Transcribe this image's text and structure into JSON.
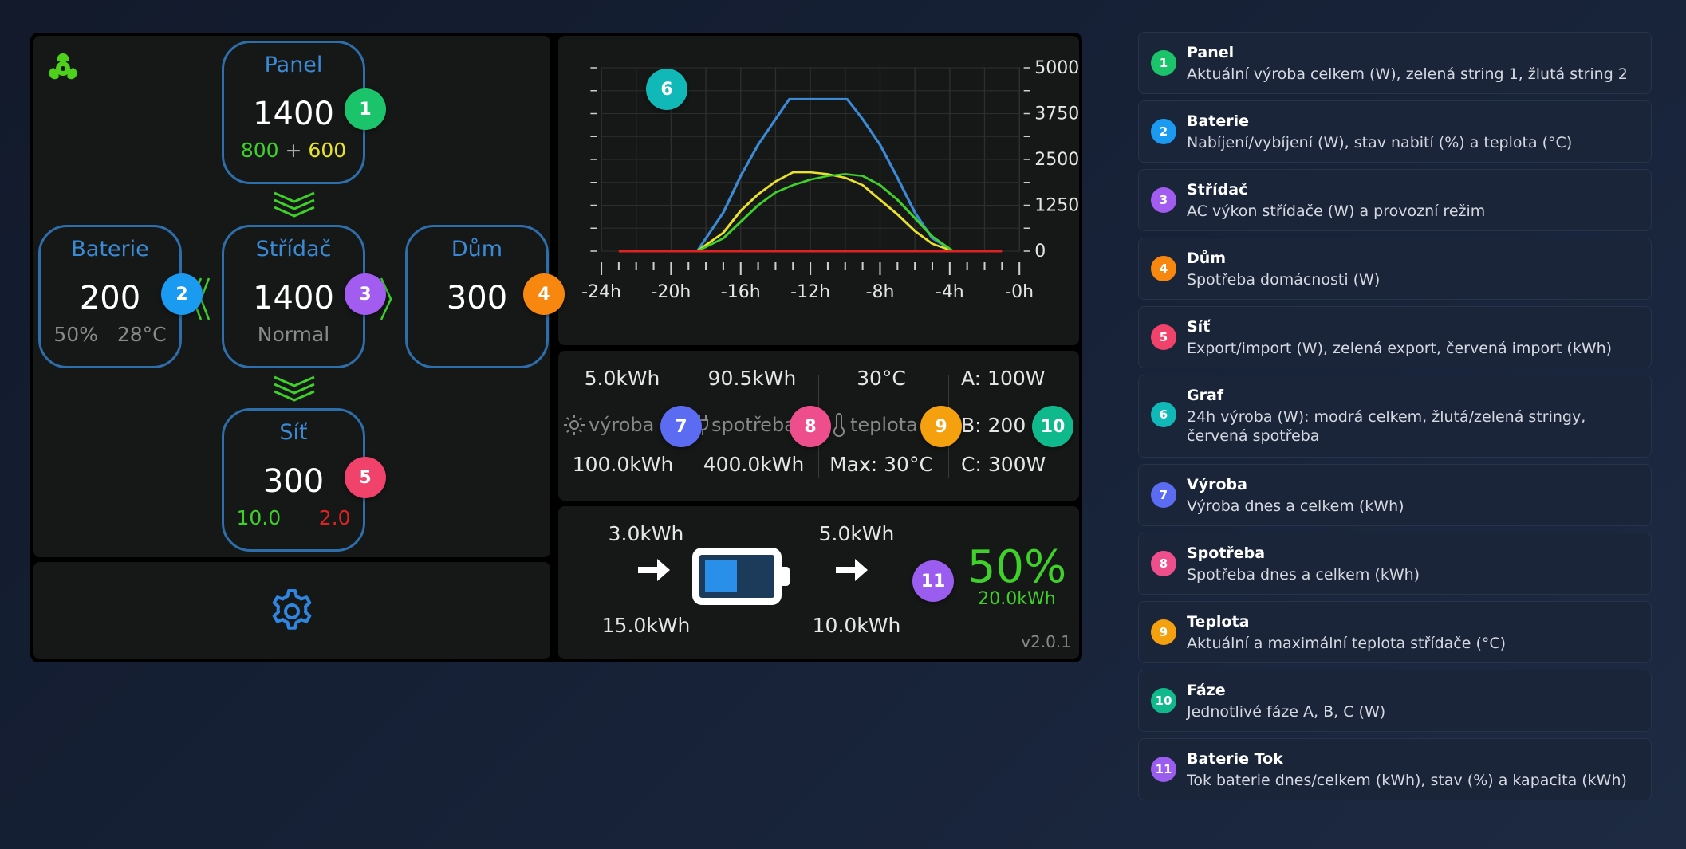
{
  "colors": {
    "accent_blue": "#3b8ad6",
    "node_border": "#2d6eab",
    "green": "#3fd12a",
    "yellow": "#e8e22c",
    "red": "#e02222"
  },
  "flow": {
    "panel": {
      "title": "Panel",
      "value": "1400",
      "string1": "800",
      "plus": "+",
      "string2": "600"
    },
    "battery": {
      "title": "Baterie",
      "value": "200",
      "soc": "50%",
      "temp": "28°C"
    },
    "inverter": {
      "title": "Střídač",
      "value": "1400",
      "mode": "Normal"
    },
    "house": {
      "title": "Dům",
      "value": "300"
    },
    "grid": {
      "title": "Síť",
      "value": "300",
      "export": "10.0",
      "import": "2.0"
    }
  },
  "badges": {
    "b1": "1",
    "b2": "2",
    "b3": "3",
    "b4": "4",
    "b5": "5",
    "b6": "6",
    "b7": "7",
    "b8": "8",
    "b9": "9",
    "b10": "10",
    "b11": "11"
  },
  "badge_colors": {
    "b1": "#1bc46a",
    "b2": "#1a9af0",
    "b3": "#a35cf0",
    "b4": "#f7870f",
    "b5": "#f0426b",
    "b6": "#11b8b8",
    "b7": "#5b6cf2",
    "b8": "#ef4e8d",
    "b9": "#f5a00f",
    "b10": "#10b98c",
    "b11": "#9b5cf0"
  },
  "chart_data": {
    "type": "line",
    "x_ticks": [
      "-24h",
      "-20h",
      "-16h",
      "-12h",
      "-8h",
      "-4h",
      "-0h"
    ],
    "y_ticks_right": [
      "5000",
      "3750",
      "2500",
      "1250",
      "0"
    ],
    "ylim": [
      0,
      5000
    ],
    "xlim": [
      -24,
      0
    ],
    "grid": true,
    "series": [
      {
        "color": "#3b8ad6",
        "x": [
          -18.5,
          -17,
          -16,
          -15,
          -14,
          -13.2,
          -12.5,
          -11,
          -9.9,
          -9,
          -8,
          -7,
          -6,
          -5,
          -3.8
        ],
        "y": [
          0,
          1050,
          2050,
          2900,
          3600,
          4150,
          4150,
          4150,
          4150,
          3600,
          2900,
          2000,
          1050,
          350,
          0
        ]
      },
      {
        "color": "#e8e22c",
        "x": [
          -18.5,
          -17,
          -16,
          -15,
          -14,
          -13,
          -12,
          -11,
          -10,
          -9,
          -8,
          -7,
          -6,
          -5,
          -3.8
        ],
        "y": [
          0,
          500,
          1100,
          1550,
          1900,
          2150,
          2150,
          2100,
          2000,
          1800,
          1400,
          1000,
          550,
          200,
          0
        ]
      },
      {
        "color": "#3fd12a",
        "x": [
          -18.5,
          -17,
          -16,
          -15,
          -14,
          -13,
          -12,
          -11,
          -10,
          -9,
          -8,
          -7,
          -6,
          -5,
          -3.8
        ],
        "y": [
          0,
          350,
          800,
          1250,
          1600,
          1800,
          1950,
          2050,
          2100,
          2050,
          1800,
          1400,
          900,
          400,
          0
        ]
      },
      {
        "color": "#e02222",
        "x": [
          -23,
          -1
        ],
        "y": [
          0,
          0
        ]
      }
    ]
  },
  "stats": {
    "production_today": "5.0kWh",
    "production_total": "100.0kWh",
    "production_label": "výroba",
    "consumption_today": "90.5kWh",
    "consumption_total": "400.0kWh",
    "consumption_label": "spotřeba",
    "temp_current": "30°C",
    "temp_max": "Max: 30°C",
    "temp_label": "teplota",
    "phase_a": "A: 100W",
    "phase_b": "B: 200",
    "phase_c": "C: 300W"
  },
  "battery_flow": {
    "charge_today": "3.0kWh",
    "charge_total": "15.0kWh",
    "discharge_today": "5.0kWh",
    "discharge_total": "10.0kWh",
    "soc": "50%",
    "soc_fraction": 0.5,
    "capacity": "20.0kWh",
    "version": "v2.0.1"
  },
  "legend": [
    {
      "num": "1",
      "color": "#1bc46a",
      "title": "Panel",
      "desc": "Aktuální výroba celkem (W), zelená string 1, žlutá string 2"
    },
    {
      "num": "2",
      "color": "#1a9af0",
      "title": "Baterie",
      "desc": "Nabíjení/vybíjení (W), stav nabití (%) a teplota (°C)"
    },
    {
      "num": "3",
      "color": "#a35cf0",
      "title": "Střídač",
      "desc": "AC výkon střídače (W) a provozní režim"
    },
    {
      "num": "4",
      "color": "#f7870f",
      "title": "Dům",
      "desc": "Spotřeba domácnosti (W)"
    },
    {
      "num": "5",
      "color": "#f0426b",
      "title": "Síť",
      "desc": "Export/import (W), zelená export, červená import (kWh)"
    },
    {
      "num": "6",
      "color": "#11b8b8",
      "title": "Graf",
      "desc": "24h výroba (W): modrá celkem, žlutá/zelená stringy, červená spotřeba"
    },
    {
      "num": "7",
      "color": "#5b6cf2",
      "title": "Výroba",
      "desc": "Výroba dnes a celkem (kWh)"
    },
    {
      "num": "8",
      "color": "#ef4e8d",
      "title": "Spotřeba",
      "desc": "Spotřeba dnes a celkem (kWh)"
    },
    {
      "num": "9",
      "color": "#f5a00f",
      "title": "Teplota",
      "desc": "Aktuální a maximální teplota střídače (°C)"
    },
    {
      "num": "10",
      "color": "#10b98c",
      "title": "Fáze",
      "desc": "Jednotlivé fáze A, B, C (W)"
    },
    {
      "num": "11",
      "color": "#9b5cf0",
      "title": "Baterie Tok",
      "desc": "Tok baterie dnes/celkem (kWh), stav (%) a kapacita (kWh)"
    }
  ]
}
